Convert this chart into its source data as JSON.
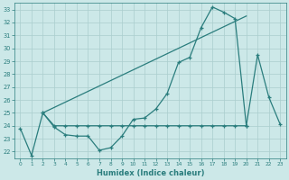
{
  "xlabel": "Humidex (Indice chaleur)",
  "x_values": [
    0,
    1,
    2,
    3,
    4,
    5,
    6,
    7,
    8,
    9,
    10,
    11,
    12,
    13,
    14,
    15,
    16,
    17,
    18,
    19,
    20,
    21,
    22,
    23
  ],
  "line1": [
    23.8,
    21.7,
    25.0,
    23.9,
    23.3,
    23.2,
    23.2,
    22.1,
    22.3,
    23.2,
    24.5,
    24.6,
    25.3,
    26.5,
    28.9,
    29.3,
    31.6,
    33.2,
    32.8,
    32.3,
    24.0,
    29.5,
    26.2,
    24.1
  ],
  "line2_x": [
    2,
    3,
    4,
    5,
    6,
    7,
    8,
    9,
    10,
    11,
    12,
    13,
    14,
    15,
    16,
    17,
    18,
    19,
    20
  ],
  "line2_y": [
    25.0,
    24.0,
    24.0,
    24.0,
    24.0,
    24.0,
    24.0,
    24.0,
    24.0,
    24.0,
    24.0,
    24.0,
    24.0,
    24.0,
    24.0,
    24.0,
    24.0,
    24.0,
    24.0
  ],
  "line3_x": [
    2,
    20
  ],
  "line3_y": [
    25.0,
    32.5
  ],
  "ylim": [
    21.5,
    33.5
  ],
  "xlim": [
    -0.5,
    23.5
  ],
  "yticks": [
    22,
    23,
    24,
    25,
    26,
    27,
    28,
    29,
    30,
    31,
    32,
    33
  ],
  "xticks": [
    0,
    1,
    2,
    3,
    4,
    5,
    6,
    7,
    8,
    9,
    10,
    11,
    12,
    13,
    14,
    15,
    16,
    17,
    18,
    19,
    20,
    21,
    22,
    23
  ],
  "line_color": "#2a7d7d",
  "bg_color": "#cce8e8",
  "grid_color": "#aacece"
}
